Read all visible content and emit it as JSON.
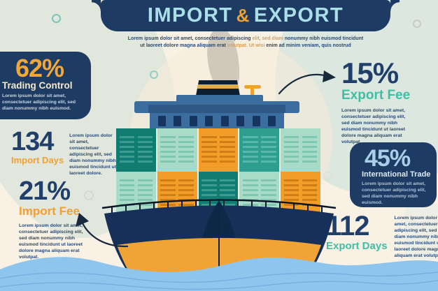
{
  "title": {
    "import": "IMPORT",
    "ampersand": "&",
    "export": "EXPORT"
  },
  "subtitle": {
    "line1_a": "Lorem ipsum dolor sit amet, consectetuer adipiscing ",
    "line1_b": "elit, sed diam",
    "line1_c": " nonummy nibh euismod tincidunt",
    "line2_a": "ut laoreet dolore magna aliquam erat ",
    "line2_b": "volutpat. Ut wisi",
    "line2_c": " enim ad minim veniam, quis nostrud"
  },
  "stats": {
    "trading_control": {
      "value": "62%",
      "label": "Trading Control",
      "description": "Lorem ipsum dolor sit amet, consectetuer adipiscing elit, sed diam nonummy nibh euismod."
    },
    "import_days": {
      "value": "134",
      "label": "Import Days",
      "description": "Lorem ipsum dolor sit amet, consectetuer adipiscing elit, sed diam nonummy nibh euismod tincidunt ut laoreet dolore."
    },
    "import_fee": {
      "value": "21%",
      "label": "Import Fee",
      "description": "Lorem ipsum dolor sit amet, consectetuer adipiscing elit, sed diam nonummy nibh euismod tincidunt ut laoreet dolore magna aliquam erat volutpat."
    },
    "export_fee": {
      "value": "15%",
      "label": "Export Fee",
      "description": "Lorem ipsum dolor sit amet, consectetuer adipiscing elit, sed diam nonummy nibh euismod tincidunt ut laoreet dolore magna aliquam erat volutpat."
    },
    "international_trade": {
      "value": "45%",
      "label": "International Trade",
      "description": "Lorem ipsum dolor sit amet, consectetuer adipiscing elit, sed diam nonummy nibh euismod."
    },
    "export_days": {
      "value": "112",
      "label": "Export Days",
      "description": "Lorem ipsum dolor sit amet, consectetuer adipiscing elit, sed diam nonummy nibh euismod tincidunt ut laoreet dolore magna aliquam erat volutpat."
    }
  },
  "colors": {
    "banner_navy": "#1E3C63",
    "title_light_blue": "#ABDFE8",
    "accent_orange": "#F2A032",
    "accent_teal": "#3EBFA4",
    "stat_navy": "#20406B",
    "card_value_blue": "#A9CFE8",
    "hull_navy": "#16305A",
    "hull_orange": "#F2A335",
    "wave_blue": "#8EC5ED",
    "background_cream": "#F9F1E4"
  },
  "ship": {
    "container_rows": [
      [
        "dteal",
        "mint",
        "orange",
        "mteal",
        "mint"
      ],
      [
        "mint",
        "orange",
        "dteal",
        "mint",
        "orange"
      ]
    ],
    "window_count": 8
  }
}
